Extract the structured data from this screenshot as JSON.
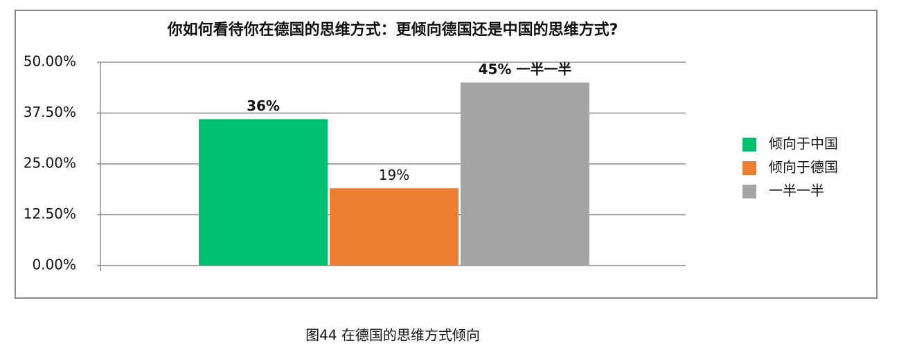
{
  "chart_data": {
    "type": "bar",
    "title": "你如何看待你在德国的思维方式：更倾向德国还是中国的思维方式?",
    "caption": "图44 在德国的思维方式倾向",
    "series": [
      {
        "name": "倾向于中国",
        "color": "#00bf6f",
        "values": [
          36
        ],
        "value_labels": [
          "36%"
        ]
      },
      {
        "name": "倾向于德国",
        "color": "#ed7d31",
        "values": [
          19
        ],
        "value_labels": [
          "19%"
        ]
      },
      {
        "name": "一半一半",
        "color": "#a5a5a5",
        "values": [
          45
        ],
        "value_labels": [
          "45%  一半一半"
        ]
      }
    ],
    "ylim": [
      0,
      50
    ],
    "yticks": [
      {
        "value": 0,
        "label": "0.00%"
      },
      {
        "value": 12.5,
        "label": "12.50%"
      },
      {
        "value": 25,
        "label": "25.00%"
      },
      {
        "value": 37.5,
        "label": "37.50%"
      },
      {
        "value": 50,
        "label": "50.00%"
      }
    ],
    "grid": true,
    "legend": "right"
  }
}
